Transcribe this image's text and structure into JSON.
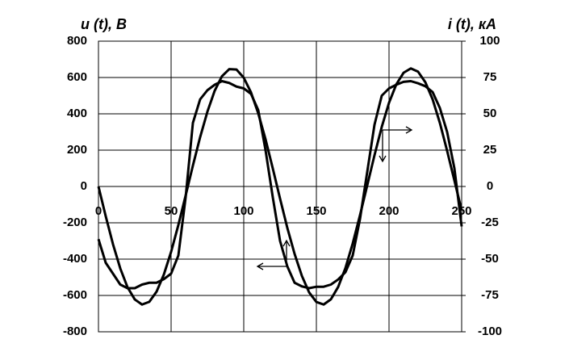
{
  "chart_data": {
    "type": "line",
    "y_label": "u (t), В",
    "y2_label": "i (t), кА",
    "x": [
      0,
      5,
      10,
      15,
      20,
      25,
      30,
      35,
      40,
      45,
      50,
      55,
      60,
      65,
      70,
      75,
      80,
      85,
      90,
      95,
      100,
      105,
      110,
      115,
      120,
      125,
      130,
      135,
      140,
      145,
      150,
      155,
      160,
      165,
      170,
      175,
      180,
      185,
      190,
      195,
      200,
      205,
      210,
      215,
      220,
      225,
      230,
      235,
      240,
      245,
      250
    ],
    "series": [
      {
        "color": "#000000",
        "values": [
          0,
          -164,
          -318,
          -451,
          -555,
          -622,
          -650,
          -635,
          -579,
          -485,
          -360,
          -212,
          -50,
          115,
          272,
          412,
          527,
          607,
          646,
          644,
          599,
          518,
          402,
          260,
          99,
          -67,
          -228,
          -371,
          -492,
          -583,
          -636,
          -650,
          -621,
          -553,
          -449,
          -314,
          -159,
          6,
          172,
          328,
          461,
          562,
          626,
          650,
          632,
          574,
          480,
          350,
          196,
          33,
          -132
        ]
      },
      {
        "color": "#000000",
        "axis": "y2",
        "values": [
          -36.25,
          -52.5,
          -60,
          -67.5,
          -70,
          -70,
          -67.5,
          -66.25,
          -66.25,
          -63.75,
          -60,
          -47.5,
          -7.5,
          43.75,
          60,
          66.25,
          70,
          72.5,
          71.25,
          68.75,
          67.5,
          63.75,
          52.5,
          25,
          -7.5,
          -37.5,
          -55,
          -66.25,
          -68.75,
          -70,
          -69,
          -69,
          -67.5,
          -64,
          -59,
          -47.5,
          -22.5,
          10,
          42.5,
          62.5,
          67.5,
          70,
          72,
          72.5,
          71,
          69,
          65,
          54,
          37.5,
          12.5,
          -27.5
        ]
      }
    ],
    "xlim": [
      0,
      250
    ],
    "xticks": [
      0,
      50,
      100,
      150,
      200,
      250
    ],
    "ylim": [
      -800,
      800
    ],
    "yticks": [
      -800,
      -600,
      -400,
      -200,
      0,
      200,
      400,
      600,
      800
    ],
    "y2lim": [
      -100,
      100
    ],
    "y2ticks": [
      -100,
      -75,
      -50,
      -25,
      0,
      25,
      50,
      75,
      100
    ],
    "grid": true
  }
}
